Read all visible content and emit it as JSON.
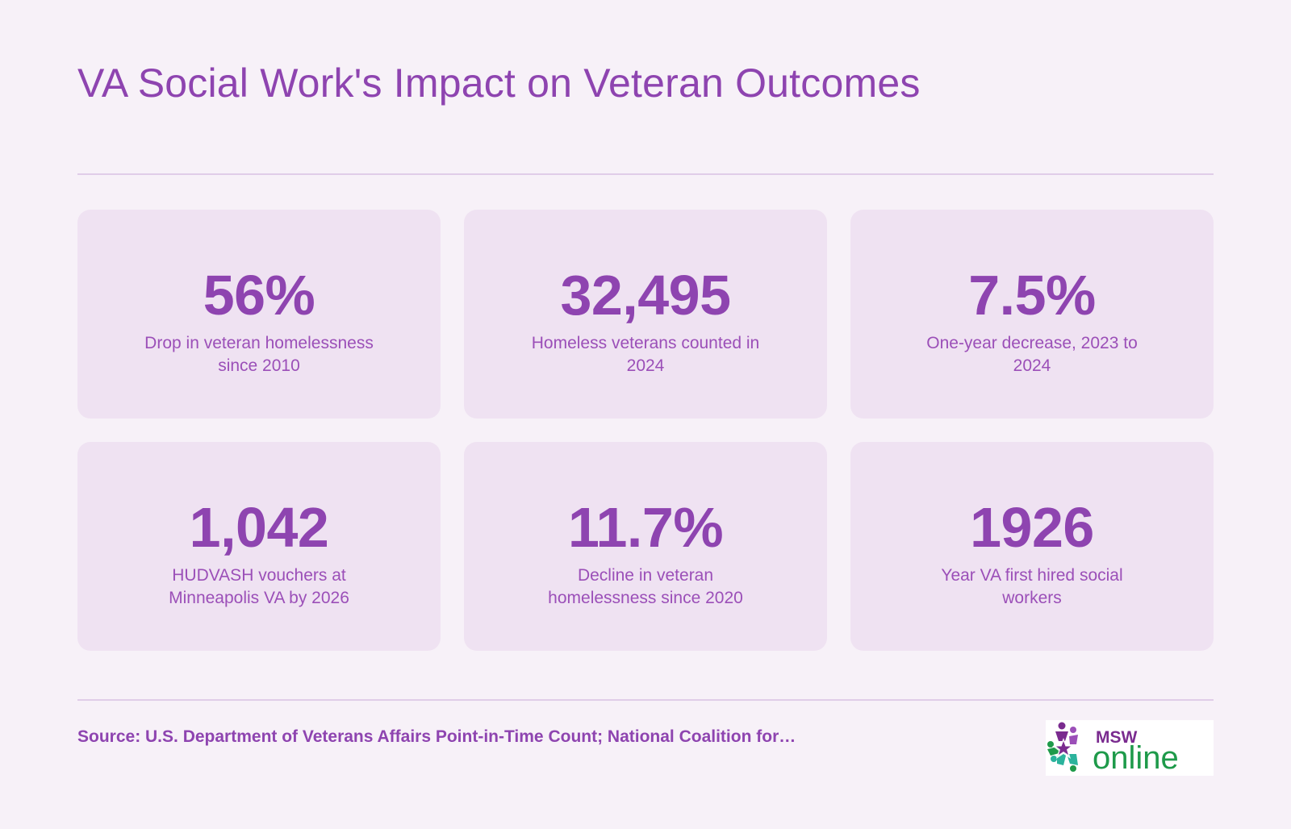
{
  "title": "VA Social Work's Impact on Veteran Outcomes",
  "stats": [
    {
      "value": "56%",
      "label": "Drop in veteran homelessness since 2010"
    },
    {
      "value": "32,495",
      "label": "Homeless veterans counted in 2024"
    },
    {
      "value": "7.5%",
      "label": "One-year decrease, 2023 to 2024"
    },
    {
      "value": "1,042",
      "label": "HUDVASH vouchers at Minneapolis VA by 2026"
    },
    {
      "value": "11.7%",
      "label": "Decline in veteran homelessness since 2020"
    },
    {
      "value": "1926",
      "label": "Year VA first hired social workers"
    }
  ],
  "source": "Source: U.S. Department of Veterans Affairs Point-in-Time Count; National Coalition for…",
  "logo": {
    "text_top": "MSW",
    "text_bottom": "online",
    "icon": "star-people-icon"
  },
  "colors": {
    "background": "#f7f1f8",
    "card": "#efe2f2",
    "accent": "#8e44b0",
    "logo_purple": "#7a2b8f",
    "logo_green": "#1e9a4a",
    "logo_teal": "#2bb39c"
  }
}
